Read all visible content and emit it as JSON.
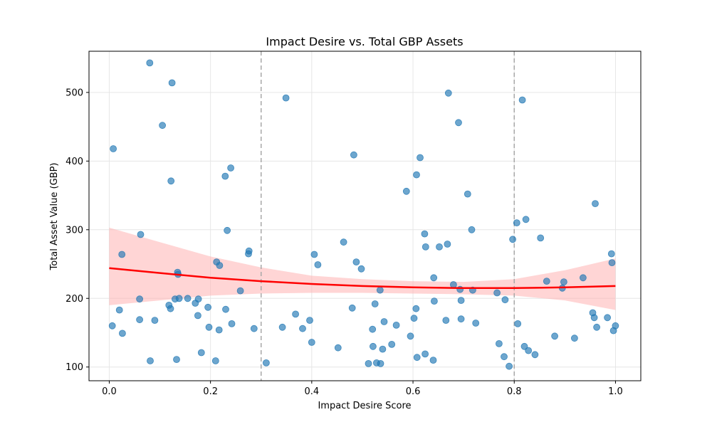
{
  "chart_data": {
    "type": "scatter",
    "title": "Impact Desire vs. Total GBP Assets",
    "xlabel": "Impact Desire Score",
    "ylabel": "Total Asset Value (GBP)",
    "xlim": [
      -0.04,
      1.05
    ],
    "ylim": [
      80,
      560
    ],
    "x_ticks": [
      0.0,
      0.2,
      0.4,
      0.6,
      0.8,
      1.0
    ],
    "x_tick_labels": [
      "0.0",
      "0.2",
      "0.4",
      "0.6",
      "0.8",
      "1.0"
    ],
    "y_ticks": [
      100,
      200,
      300,
      400,
      500
    ],
    "y_tick_labels": [
      "100",
      "200",
      "300",
      "400",
      "500"
    ],
    "grid": true,
    "vlines": [
      0.3,
      0.8
    ],
    "colors": {
      "points": "#1f77b4",
      "trend": "#ff0000",
      "band": "#ffb3b3",
      "vline": "#a8a8a8",
      "grid": "#e6e6e6"
    },
    "points": [
      [
        0.006,
        160
      ],
      [
        0.008,
        418
      ],
      [
        0.02,
        183
      ],
      [
        0.025,
        264
      ],
      [
        0.026,
        149
      ],
      [
        0.06,
        199
      ],
      [
        0.06,
        169
      ],
      [
        0.062,
        293
      ],
      [
        0.08,
        543
      ],
      [
        0.081,
        109
      ],
      [
        0.09,
        168
      ],
      [
        0.105,
        452
      ],
      [
        0.118,
        190
      ],
      [
        0.121,
        185
      ],
      [
        0.122,
        371
      ],
      [
        0.124,
        514
      ],
      [
        0.13,
        199
      ],
      [
        0.133,
        111
      ],
      [
        0.135,
        238
      ],
      [
        0.136,
        235
      ],
      [
        0.138,
        200
      ],
      [
        0.155,
        200
      ],
      [
        0.17,
        193
      ],
      [
        0.175,
        175
      ],
      [
        0.176,
        199
      ],
      [
        0.182,
        121
      ],
      [
        0.195,
        187
      ],
      [
        0.197,
        158
      ],
      [
        0.21,
        109
      ],
      [
        0.212,
        253
      ],
      [
        0.217,
        154
      ],
      [
        0.218,
        248
      ],
      [
        0.229,
        378
      ],
      [
        0.23,
        184
      ],
      [
        0.233,
        299
      ],
      [
        0.24,
        390
      ],
      [
        0.242,
        163
      ],
      [
        0.259,
        211
      ],
      [
        0.275,
        265
      ],
      [
        0.276,
        269
      ],
      [
        0.286,
        156
      ],
      [
        0.31,
        106
      ],
      [
        0.342,
        158
      ],
      [
        0.349,
        492
      ],
      [
        0.368,
        177
      ],
      [
        0.382,
        156
      ],
      [
        0.396,
        168
      ],
      [
        0.4,
        136
      ],
      [
        0.405,
        264
      ],
      [
        0.412,
        249
      ],
      [
        0.452,
        128
      ],
      [
        0.463,
        282
      ],
      [
        0.48,
        186
      ],
      [
        0.483,
        409
      ],
      [
        0.488,
        253
      ],
      [
        0.498,
        243
      ],
      [
        0.512,
        105
      ],
      [
        0.52,
        155
      ],
      [
        0.521,
        130
      ],
      [
        0.525,
        192
      ],
      [
        0.528,
        106
      ],
      [
        0.535,
        212
      ],
      [
        0.536,
        105
      ],
      [
        0.54,
        126
      ],
      [
        0.543,
        166
      ],
      [
        0.558,
        133
      ],
      [
        0.567,
        161
      ],
      [
        0.587,
        356
      ],
      [
        0.595,
        145
      ],
      [
        0.602,
        171
      ],
      [
        0.606,
        185
      ],
      [
        0.607,
        380
      ],
      [
        0.608,
        114
      ],
      [
        0.614,
        405
      ],
      [
        0.623,
        294
      ],
      [
        0.624,
        119
      ],
      [
        0.625,
        275
      ],
      [
        0.64,
        110
      ],
      [
        0.641,
        230
      ],
      [
        0.642,
        196
      ],
      [
        0.652,
        275
      ],
      [
        0.665,
        168
      ],
      [
        0.668,
        279
      ],
      [
        0.67,
        499
      ],
      [
        0.68,
        220
      ],
      [
        0.69,
        456
      ],
      [
        0.693,
        213
      ],
      [
        0.695,
        197
      ],
      [
        0.695,
        170
      ],
      [
        0.708,
        352
      ],
      [
        0.716,
        300
      ],
      [
        0.718,
        212
      ],
      [
        0.724,
        164
      ],
      [
        0.766,
        208
      ],
      [
        0.77,
        134
      ],
      [
        0.78,
        115
      ],
      [
        0.782,
        198
      ],
      [
        0.79,
        101
      ],
      [
        0.797,
        286
      ],
      [
        0.805,
        310
      ],
      [
        0.807,
        163
      ],
      [
        0.816,
        489
      ],
      [
        0.82,
        130
      ],
      [
        0.823,
        315
      ],
      [
        0.828,
        124
      ],
      [
        0.841,
        118
      ],
      [
        0.852,
        288
      ],
      [
        0.864,
        225
      ],
      [
        0.88,
        145
      ],
      [
        0.895,
        215
      ],
      [
        0.898,
        224
      ],
      [
        0.919,
        142
      ],
      [
        0.936,
        230
      ],
      [
        0.955,
        179
      ],
      [
        0.958,
        172
      ],
      [
        0.96,
        338
      ],
      [
        0.963,
        158
      ],
      [
        0.984,
        172
      ],
      [
        0.992,
        265
      ],
      [
        0.993,
        252
      ],
      [
        0.996,
        153
      ],
      [
        1.0,
        160
      ]
    ],
    "trend_x": [
      0.0,
      0.1,
      0.2,
      0.3,
      0.4,
      0.5,
      0.6,
      0.7,
      0.8,
      0.9,
      1.0
    ],
    "trend_y": [
      244,
      237,
      230,
      225,
      221,
      218,
      216,
      215,
      215,
      216,
      218
    ],
    "band_lower": [
      190,
      197,
      204,
      207,
      208,
      208,
      207,
      206,
      204,
      197,
      183
    ],
    "band_upper": [
      303,
      282,
      261,
      245,
      233,
      228,
      225,
      224,
      228,
      241,
      258
    ]
  }
}
